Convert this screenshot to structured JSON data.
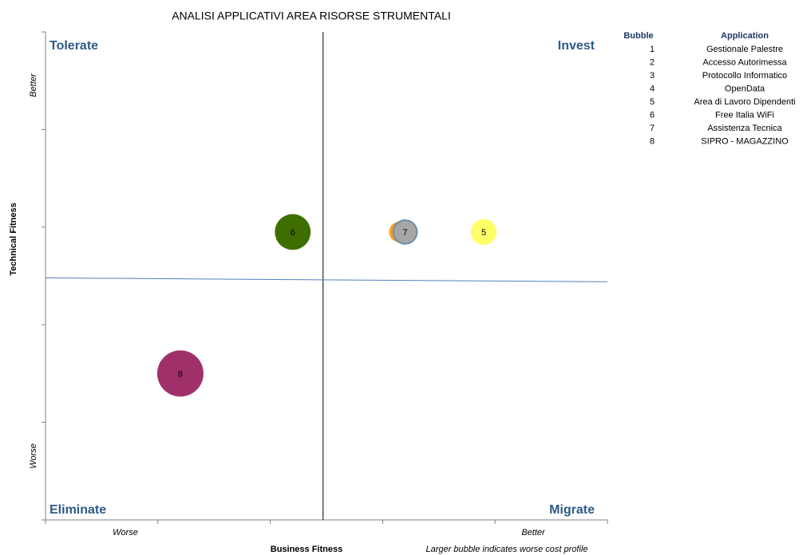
{
  "chart_data": {
    "type": "bubble",
    "title": "ANALISI APPLICATIVI AREA RISORSE STRUMENTALI",
    "x_label": "Business Fitness",
    "y_label": "Technical Fitness",
    "x_low": "Worse",
    "x_high": "Better",
    "y_low": "Worse",
    "y_high": "Better",
    "note": "Larger bubble indicates worse cost profile",
    "quadrants": {
      "top_left": "Tolerate",
      "top_right": "Invest",
      "bottom_left": "Eliminate",
      "bottom_right": "Migrate"
    },
    "legend_headers": {
      "bubble": "Bubble",
      "application": "Application"
    },
    "quadrant_lines": {
      "x": 2.47,
      "y_left": 2.48,
      "y_right": 2.44
    },
    "xlim": [
      0,
      5
    ],
    "ylim": [
      0,
      5
    ],
    "xticks": [
      0,
      1,
      2,
      3,
      4,
      5
    ],
    "yticks": [
      0,
      1,
      2,
      3,
      4,
      5
    ],
    "series": [
      {
        "name": "1",
        "application": "Gestionale Palestre",
        "color": "#4f81bd",
        "x": 3.2,
        "y": 2.95,
        "size": 2
      },
      {
        "name": "2",
        "application": "Accesso Autorimessa",
        "color": "#c0504d",
        "x": 3.2,
        "y": 2.95,
        "size": 2
      },
      {
        "name": "3",
        "application": "Protocollo Informatico",
        "color": "#3f6e00",
        "x": 2.2,
        "y": 2.95,
        "size": 5
      },
      {
        "name": "4",
        "application": "OpenData",
        "color": "#f7a21b",
        "x": 3.15,
        "y": 2.95,
        "size": 1.7
      },
      {
        "name": "5",
        "application": "Area di Lavoro Dipendenti",
        "color": "#ffff66",
        "x": 3.9,
        "y": 2.95,
        "size": 2.6
      },
      {
        "name": "6",
        "application": "Free Italia WiFi",
        "color": "#3f6e00",
        "x": 2.2,
        "y": 2.95,
        "size": 5
      },
      {
        "name": "7",
        "application": "Assistenza Tecnica",
        "color": "#a6a6a6",
        "x": 3.2,
        "y": 2.95,
        "size": 2.2
      },
      {
        "name": "8",
        "application": "SIPRO - MAGAZZINO",
        "color": "#a0306a",
        "x": 1.2,
        "y": 1.5,
        "size": 8.4
      }
    ]
  }
}
